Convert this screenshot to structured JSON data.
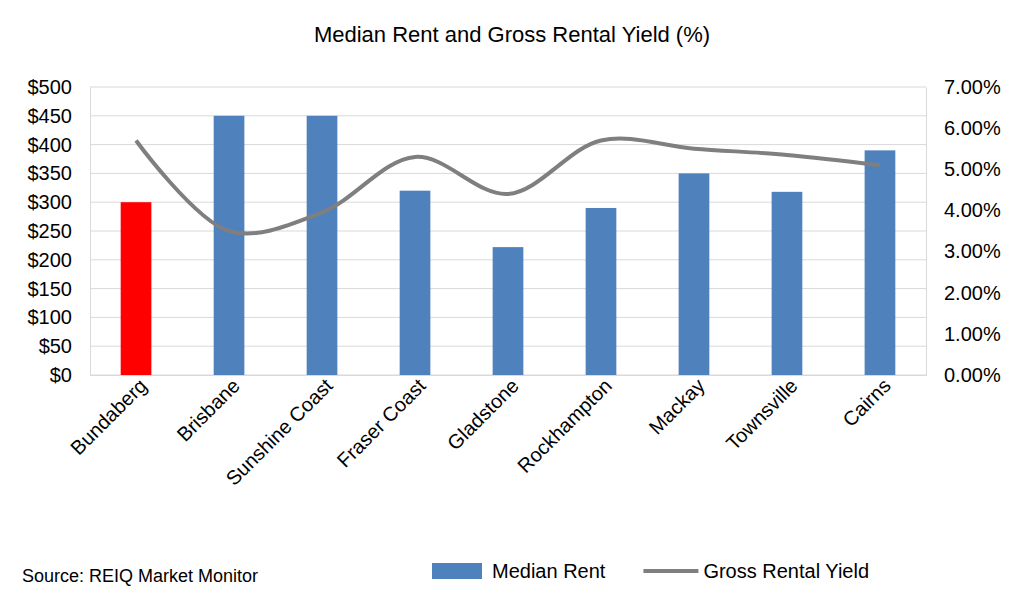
{
  "chart_data": {
    "type": "bar",
    "title": "Median Rent and Gross Rental Yield (%)",
    "source": "Source: REIQ Market Monitor",
    "categories": [
      "Bundaberg",
      "Brisbane",
      "Sunshine Coast",
      "Fraser Coast",
      "Gladstone",
      "Rockhampton",
      "Mackay",
      "Townsville",
      "Cairns"
    ],
    "series": [
      {
        "name": "Median Rent",
        "type": "bar",
        "colors": [
          "#ff0000",
          "#4f81bd",
          "#4f81bd",
          "#4f81bd",
          "#4f81bd",
          "#4f81bd",
          "#4f81bd",
          "#4f81bd",
          "#4f81bd"
        ],
        "values": [
          300,
          450,
          450,
          320,
          222,
          290,
          350,
          318,
          390
        ]
      },
      {
        "name": "Gross Rental Yield",
        "type": "line",
        "axis": "y2",
        "color": "#7f7f7f",
        "line_style": "solid",
        "values": [
          5.7,
          3.5,
          3.95,
          5.3,
          4.4,
          5.7,
          5.5,
          5.35,
          5.1
        ]
      }
    ],
    "ylim": [
      0,
      500
    ],
    "yticks": [
      {
        "value": 0,
        "label": "$0"
      },
      {
        "value": 50,
        "label": "$50"
      },
      {
        "value": 100,
        "label": "$100"
      },
      {
        "value": 150,
        "label": "$150"
      },
      {
        "value": 200,
        "label": "$200"
      },
      {
        "value": 250,
        "label": "$250"
      },
      {
        "value": 300,
        "label": "$300"
      },
      {
        "value": 350,
        "label": "$350"
      },
      {
        "value": 400,
        "label": "$400"
      },
      {
        "value": 450,
        "label": "$450"
      },
      {
        "value": 500,
        "label": "$500"
      }
    ],
    "y2lim": [
      0,
      7
    ],
    "y2ticks": [
      {
        "value": 0,
        "label": "0.00%"
      },
      {
        "value": 1,
        "label": "1.00%"
      },
      {
        "value": 2,
        "label": "2.00%"
      },
      {
        "value": 3,
        "label": "3.00%"
      },
      {
        "value": 4,
        "label": "4.00%"
      },
      {
        "value": 5,
        "label": "5.00%"
      },
      {
        "value": 6,
        "label": "6.00%"
      },
      {
        "value": 7,
        "label": "7.00%"
      }
    ],
    "grid": true,
    "legend": "bottom"
  }
}
